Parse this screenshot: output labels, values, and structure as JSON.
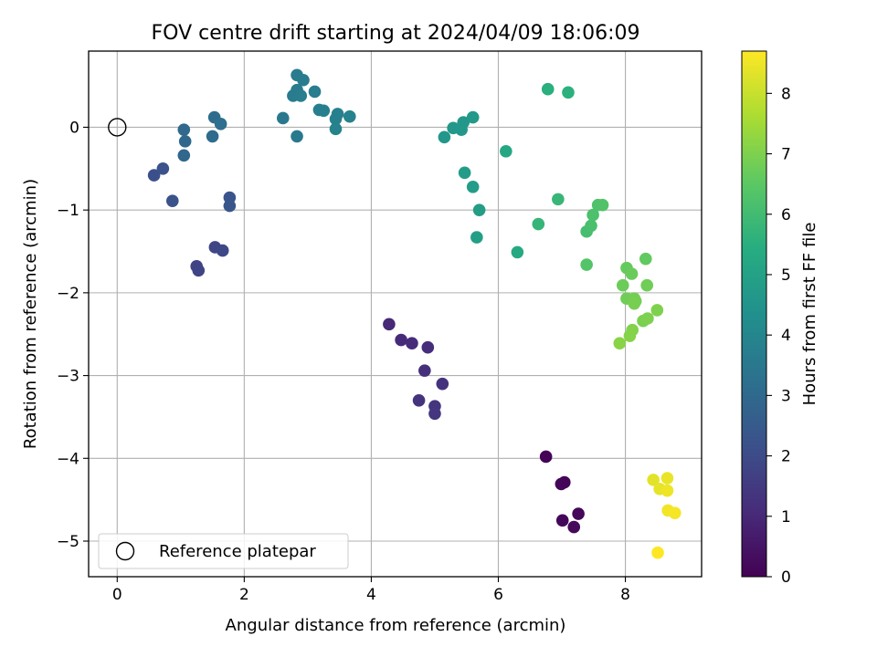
{
  "chart_data": {
    "type": "scatter",
    "title": "FOV centre drift starting at 2024/04/09 18:06:09",
    "xlabel": "Angular distance from reference (arcmin)",
    "ylabel": "Rotation from reference (arcmin)",
    "xlim": [
      -0.45,
      9.2
    ],
    "ylim": [
      -5.43,
      0.92
    ],
    "xticks": [
      0,
      2,
      4,
      6,
      8
    ],
    "yticks": [
      0,
      -1,
      -2,
      -3,
      -4,
      -5
    ],
    "xtick_labels": [
      "0",
      "2",
      "4",
      "6",
      "8"
    ],
    "ytick_labels": [
      "0",
      "−1",
      "−2",
      "−3",
      "−4",
      "−5"
    ],
    "grid": true,
    "colormap": "viridis",
    "colorbar": {
      "label": "Hours from first FF file",
      "range": [
        0,
        8.7
      ],
      "ticks": [
        0,
        1,
        2,
        3,
        4,
        5,
        6,
        7,
        8
      ],
      "tick_labels": [
        "0",
        "1",
        "2",
        "3",
        "4",
        "5",
        "6",
        "7",
        "8"
      ]
    },
    "legend": {
      "position": "lower-left",
      "label": "Reference platepar"
    },
    "reference_point": {
      "x": 0,
      "y": 0
    },
    "points": [
      {
        "x": 6.75,
        "y": -3.98,
        "h": 0.05
      },
      {
        "x": 7.04,
        "y": -4.29,
        "h": 0.1
      },
      {
        "x": 6.99,
        "y": -4.31,
        "h": 0.12
      },
      {
        "x": 7.26,
        "y": -4.67,
        "h": 0.15
      },
      {
        "x": 7.01,
        "y": -4.75,
        "h": 0.18
      },
      {
        "x": 7.19,
        "y": -4.83,
        "h": 0.2
      },
      {
        "x": 4.28,
        "y": -2.38,
        "h": 1.0
      },
      {
        "x": 4.47,
        "y": -2.57,
        "h": 1.05
      },
      {
        "x": 4.64,
        "y": -2.61,
        "h": 1.1
      },
      {
        "x": 4.89,
        "y": -2.66,
        "h": 1.15
      },
      {
        "x": 4.84,
        "y": -2.94,
        "h": 1.2
      },
      {
        "x": 5.12,
        "y": -3.1,
        "h": 1.25
      },
      {
        "x": 4.75,
        "y": -3.3,
        "h": 1.3
      },
      {
        "x": 5.0,
        "y": -3.37,
        "h": 1.35
      },
      {
        "x": 5.0,
        "y": -3.46,
        "h": 1.4
      },
      {
        "x": 1.25,
        "y": -1.68,
        "h": 1.75
      },
      {
        "x": 1.28,
        "y": -1.73,
        "h": 1.8
      },
      {
        "x": 1.54,
        "y": -1.45,
        "h": 1.85
      },
      {
        "x": 1.66,
        "y": -1.49,
        "h": 1.9
      },
      {
        "x": 0.58,
        "y": -0.58,
        "h": 2.15
      },
      {
        "x": 0.72,
        "y": -0.5,
        "h": 2.2
      },
      {
        "x": 0.87,
        "y": -0.89,
        "h": 2.25
      },
      {
        "x": 1.77,
        "y": -0.85,
        "h": 2.3
      },
      {
        "x": 1.77,
        "y": -0.95,
        "h": 2.35
      },
      {
        "x": 1.05,
        "y": -0.34,
        "h": 2.9
      },
      {
        "x": 1.07,
        "y": -0.17,
        "h": 2.95
      },
      {
        "x": 1.05,
        "y": -0.03,
        "h": 3.0
      },
      {
        "x": 1.5,
        "y": -0.11,
        "h": 3.05
      },
      {
        "x": 1.53,
        "y": 0.12,
        "h": 3.1
      },
      {
        "x": 1.63,
        "y": 0.04,
        "h": 3.15
      },
      {
        "x": 2.61,
        "y": 0.11,
        "h": 3.5
      },
      {
        "x": 2.83,
        "y": -0.11,
        "h": 3.55
      },
      {
        "x": 2.77,
        "y": 0.38,
        "h": 3.6
      },
      {
        "x": 2.83,
        "y": 0.45,
        "h": 3.6
      },
      {
        "x": 2.83,
        "y": 0.63,
        "h": 3.65
      },
      {
        "x": 2.93,
        "y": 0.57,
        "h": 3.65
      },
      {
        "x": 2.89,
        "y": 0.38,
        "h": 3.7
      },
      {
        "x": 3.11,
        "y": 0.43,
        "h": 3.7
      },
      {
        "x": 3.18,
        "y": 0.21,
        "h": 3.75
      },
      {
        "x": 3.25,
        "y": 0.2,
        "h": 3.75
      },
      {
        "x": 3.44,
        "y": 0.1,
        "h": 3.8
      },
      {
        "x": 3.47,
        "y": 0.16,
        "h": 3.8
      },
      {
        "x": 3.44,
        "y": -0.02,
        "h": 3.85
      },
      {
        "x": 3.66,
        "y": 0.13,
        "h": 3.85
      },
      {
        "x": 5.15,
        "y": -0.12,
        "h": 4.6
      },
      {
        "x": 5.29,
        "y": -0.01,
        "h": 4.6
      },
      {
        "x": 5.42,
        "y": -0.03,
        "h": 4.65
      },
      {
        "x": 5.45,
        "y": 0.06,
        "h": 4.65
      },
      {
        "x": 5.6,
        "y": 0.12,
        "h": 4.7
      },
      {
        "x": 5.47,
        "y": -0.55,
        "h": 4.75
      },
      {
        "x": 5.6,
        "y": -0.72,
        "h": 4.8
      },
      {
        "x": 5.7,
        "y": -1.0,
        "h": 4.85
      },
      {
        "x": 5.66,
        "y": -1.33,
        "h": 4.9
      },
      {
        "x": 6.12,
        "y": -0.29,
        "h": 5.2
      },
      {
        "x": 6.3,
        "y": -1.51,
        "h": 5.3
      },
      {
        "x": 6.78,
        "y": 0.46,
        "h": 5.5
      },
      {
        "x": 7.1,
        "y": 0.42,
        "h": 5.55
      },
      {
        "x": 6.63,
        "y": -1.17,
        "h": 5.75
      },
      {
        "x": 6.94,
        "y": -0.87,
        "h": 5.8
      },
      {
        "x": 7.39,
        "y": -1.26,
        "h": 6.1
      },
      {
        "x": 7.46,
        "y": -1.19,
        "h": 6.15
      },
      {
        "x": 7.49,
        "y": -1.06,
        "h": 6.2
      },
      {
        "x": 7.57,
        "y": -0.94,
        "h": 6.25
      },
      {
        "x": 7.64,
        "y": -0.94,
        "h": 6.3
      },
      {
        "x": 7.39,
        "y": -1.66,
        "h": 6.35
      },
      {
        "x": 8.32,
        "y": -1.59,
        "h": 6.6
      },
      {
        "x": 8.02,
        "y": -1.7,
        "h": 6.65
      },
      {
        "x": 8.1,
        "y": -1.77,
        "h": 6.7
      },
      {
        "x": 7.96,
        "y": -1.91,
        "h": 6.75
      },
      {
        "x": 8.34,
        "y": -1.91,
        "h": 6.8
      },
      {
        "x": 8.02,
        "y": -2.07,
        "h": 6.8
      },
      {
        "x": 8.14,
        "y": -2.07,
        "h": 6.85
      },
      {
        "x": 8.16,
        "y": -2.1,
        "h": 6.85
      },
      {
        "x": 8.14,
        "y": -2.13,
        "h": 6.9
      },
      {
        "x": 8.28,
        "y": -2.34,
        "h": 6.95
      },
      {
        "x": 8.35,
        "y": -2.31,
        "h": 7.0
      },
      {
        "x": 8.5,
        "y": -2.21,
        "h": 7.0
      },
      {
        "x": 8.11,
        "y": -2.45,
        "h": 7.05
      },
      {
        "x": 8.07,
        "y": -2.52,
        "h": 7.1
      },
      {
        "x": 7.91,
        "y": -2.61,
        "h": 7.15
      },
      {
        "x": 8.44,
        "y": -4.26,
        "h": 8.35
      },
      {
        "x": 8.54,
        "y": -4.37,
        "h": 8.4
      },
      {
        "x": 8.66,
        "y": -4.24,
        "h": 8.45
      },
      {
        "x": 8.66,
        "y": -4.39,
        "h": 8.5
      },
      {
        "x": 8.67,
        "y": -4.63,
        "h": 8.55
      },
      {
        "x": 8.78,
        "y": -4.66,
        "h": 8.6
      },
      {
        "x": 8.51,
        "y": -5.14,
        "h": 8.7
      }
    ]
  }
}
